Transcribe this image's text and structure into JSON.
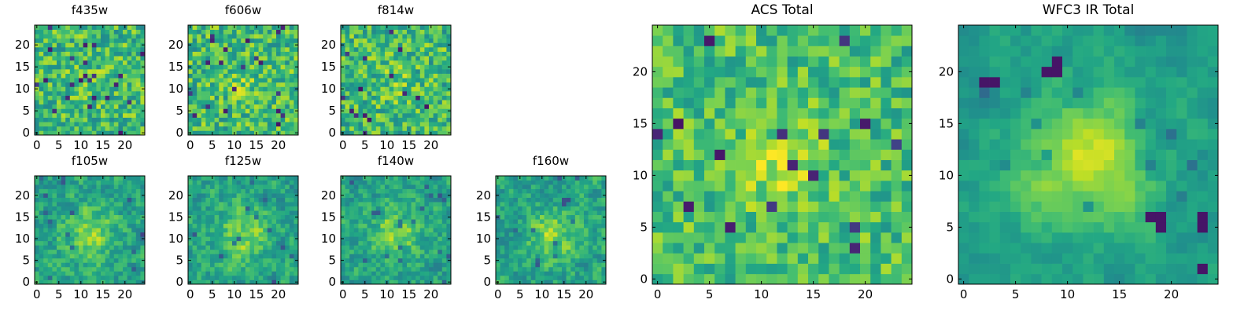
{
  "figure": {
    "panels": [
      {
        "id": "f435w",
        "title": "f435w"
      },
      {
        "id": "f606w",
        "title": "f606w"
      },
      {
        "id": "f814w",
        "title": "f814w"
      },
      {
        "id": "f105w",
        "title": "f105w"
      },
      {
        "id": "f125w",
        "title": "f125w"
      },
      {
        "id": "f140w",
        "title": "f140w"
      },
      {
        "id": "f160w",
        "title": "f160w"
      },
      {
        "id": "acs_total",
        "title": "ACS Total"
      },
      {
        "id": "wfc3_ir_total",
        "title": "WFC3 IR Total"
      }
    ]
  },
  "chart_data": [
    {
      "type": "heatmap",
      "title": "f435w",
      "colormap": "viridis",
      "grid_shape": [
        25,
        25
      ],
      "xlim": [
        -0.5,
        24.5
      ],
      "ylim": [
        -0.5,
        24.5
      ],
      "xticks": [
        0,
        5,
        10,
        15,
        20
      ],
      "yticks": [
        0,
        5,
        10,
        15,
        20
      ],
      "xtick_labels": [
        "0",
        "5",
        "10",
        "15",
        "20"
      ],
      "ytick_labels": [
        "0",
        "5",
        "10",
        "15",
        "20"
      ],
      "description": "noise-dominated pixel grid, mostly green-yellow with scattered dark pixels"
    },
    {
      "type": "heatmap",
      "title": "f606w",
      "colormap": "viridis",
      "grid_shape": [
        25,
        25
      ],
      "xlim": [
        -0.5,
        24.5
      ],
      "ylim": [
        -0.5,
        24.5
      ],
      "xticks": [
        0,
        5,
        10,
        15,
        20
      ],
      "yticks": [
        0,
        5,
        10,
        15,
        20
      ],
      "xtick_labels": [
        "0",
        "5",
        "10",
        "15",
        "20"
      ],
      "ytick_labels": [
        "0",
        "5",
        "10",
        "15",
        "20"
      ]
    },
    {
      "type": "heatmap",
      "title": "f814w",
      "colormap": "viridis",
      "grid_shape": [
        25,
        25
      ],
      "xlim": [
        -0.5,
        24.5
      ],
      "ylim": [
        -0.5,
        24.5
      ],
      "xticks": [
        0,
        5,
        10,
        15,
        20
      ],
      "yticks": [
        0,
        5,
        10,
        15,
        20
      ],
      "xtick_labels": [
        "0",
        "5",
        "10",
        "15",
        "20"
      ],
      "ytick_labels": [
        "0",
        "5",
        "10",
        "15",
        "20"
      ]
    },
    {
      "type": "heatmap",
      "title": "f105w",
      "colormap": "viridis",
      "grid_shape": [
        25,
        25
      ],
      "xlim": [
        -0.5,
        24.5
      ],
      "ylim": [
        -0.5,
        24.5
      ],
      "xticks": [
        0,
        5,
        10,
        15,
        20
      ],
      "yticks": [
        0,
        5,
        10,
        15,
        20
      ],
      "xtick_labels": [
        "0",
        "5",
        "10",
        "15",
        "20"
      ],
      "ytick_labels": [
        "0",
        "5",
        "10",
        "15",
        "20"
      ]
    },
    {
      "type": "heatmap",
      "title": "f125w",
      "colormap": "viridis",
      "grid_shape": [
        25,
        25
      ],
      "xlim": [
        -0.5,
        24.5
      ],
      "ylim": [
        -0.5,
        24.5
      ],
      "xticks": [
        0,
        5,
        10,
        15,
        20
      ],
      "yticks": [
        0,
        5,
        10,
        15,
        20
      ],
      "xtick_labels": [
        "0",
        "5",
        "10",
        "15",
        "20"
      ],
      "ytick_labels": [
        "0",
        "5",
        "10",
        "15",
        "20"
      ]
    },
    {
      "type": "heatmap",
      "title": "f140w",
      "colormap": "viridis",
      "grid_shape": [
        25,
        25
      ],
      "xlim": [
        -0.5,
        24.5
      ],
      "ylim": [
        -0.5,
        24.5
      ],
      "xticks": [
        0,
        5,
        10,
        15,
        20
      ],
      "yticks": [
        0,
        5,
        10,
        15,
        20
      ],
      "xtick_labels": [
        "0",
        "5",
        "10",
        "15",
        "20"
      ],
      "ytick_labels": [
        "0",
        "5",
        "10",
        "15",
        "20"
      ]
    },
    {
      "type": "heatmap",
      "title": "f160w",
      "colormap": "viridis",
      "grid_shape": [
        25,
        25
      ],
      "xlim": [
        -0.5,
        24.5
      ],
      "ylim": [
        -0.5,
        24.5
      ],
      "xticks": [
        0,
        5,
        10,
        15,
        20
      ],
      "yticks": [
        0,
        5,
        10,
        15,
        20
      ],
      "xtick_labels": [
        "0",
        "5",
        "10",
        "15",
        "20"
      ],
      "ytick_labels": [
        "0",
        "5",
        "10",
        "15",
        "20"
      ]
    },
    {
      "type": "heatmap",
      "title": "ACS Total",
      "colormap": "viridis",
      "grid_shape": [
        25,
        25
      ],
      "xlim": [
        -0.5,
        24.5
      ],
      "ylim": [
        -0.5,
        24.5
      ],
      "xticks": [
        0,
        5,
        10,
        15,
        20
      ],
      "yticks": [
        0,
        5,
        10,
        15,
        20
      ],
      "xtick_labels": [
        "0",
        "5",
        "10",
        "15",
        "20"
      ],
      "ytick_labels": [
        "0",
        "5",
        "10",
        "15",
        "20"
      ]
    },
    {
      "type": "heatmap",
      "title": "WFC3 IR Total",
      "colormap": "viridis",
      "grid_shape": [
        25,
        25
      ],
      "xlim": [
        -0.5,
        24.5
      ],
      "ylim": [
        -0.5,
        24.5
      ],
      "xticks": [
        0,
        5,
        10,
        15,
        20
      ],
      "yticks": [
        0,
        5,
        10,
        15,
        20
      ],
      "xtick_labels": [
        "0",
        "5",
        "10",
        "15",
        "20"
      ],
      "ytick_labels": [
        "0",
        "5",
        "10",
        "15",
        "20"
      ]
    }
  ]
}
